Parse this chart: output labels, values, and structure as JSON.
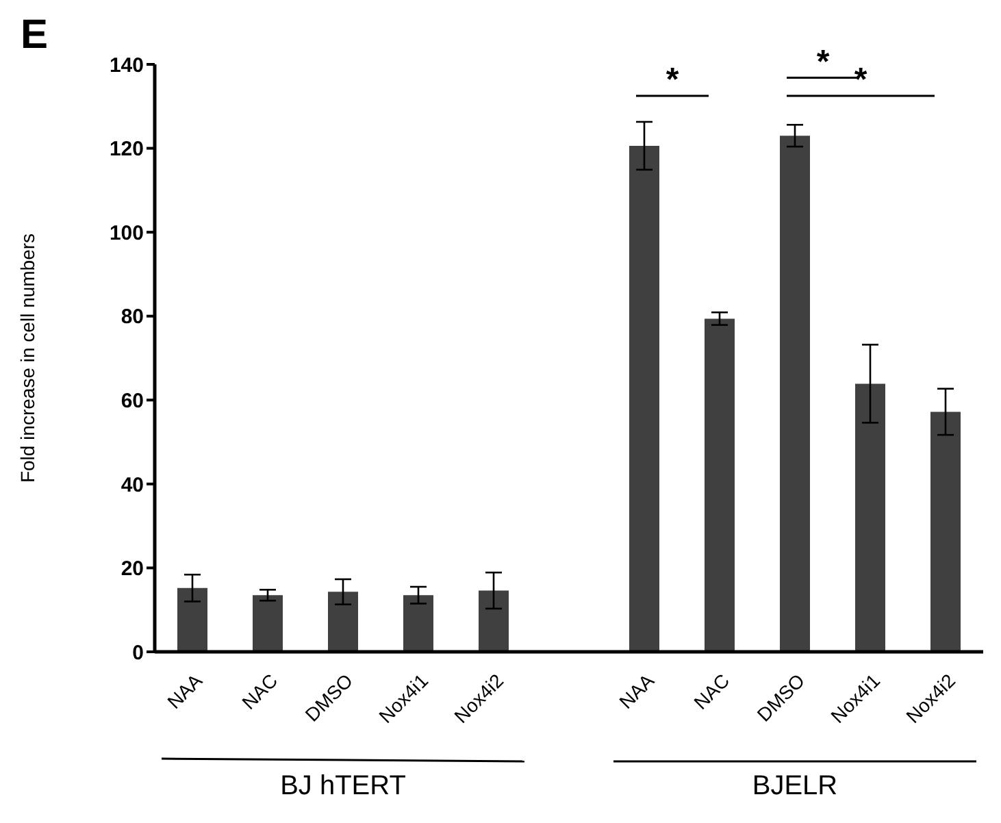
{
  "chart_data": {
    "type": "bar",
    "ylabel": "Fold increase in cell numbers",
    "categories": [
      "NAA",
      "NAC",
      "DMSO",
      "Nox4i1",
      "Nox4i2",
      null,
      "NAA",
      "NAC",
      "DMSO",
      "Nox4i1",
      "Nox4i2"
    ],
    "values": [
      15.2,
      13.5,
      14.3,
      13.5,
      14.6,
      null,
      120.6,
      79.4,
      123.0,
      63.9,
      57.2
    ],
    "errors": [
      3.2,
      1.3,
      3,
      2,
      4.3,
      null,
      5.7,
      1.5,
      2.6,
      9.3,
      5.5
    ],
    "color": "#404040",
    "ylim": [
      0,
      140
    ],
    "yticks": [
      0,
      20,
      40,
      60,
      80,
      100,
      120,
      140
    ],
    "grid": false,
    "legend": false,
    "annotations": [
      "E",
      "BJ hTERT",
      "BJELR",
      "*",
      "*",
      "*"
    ]
  }
}
